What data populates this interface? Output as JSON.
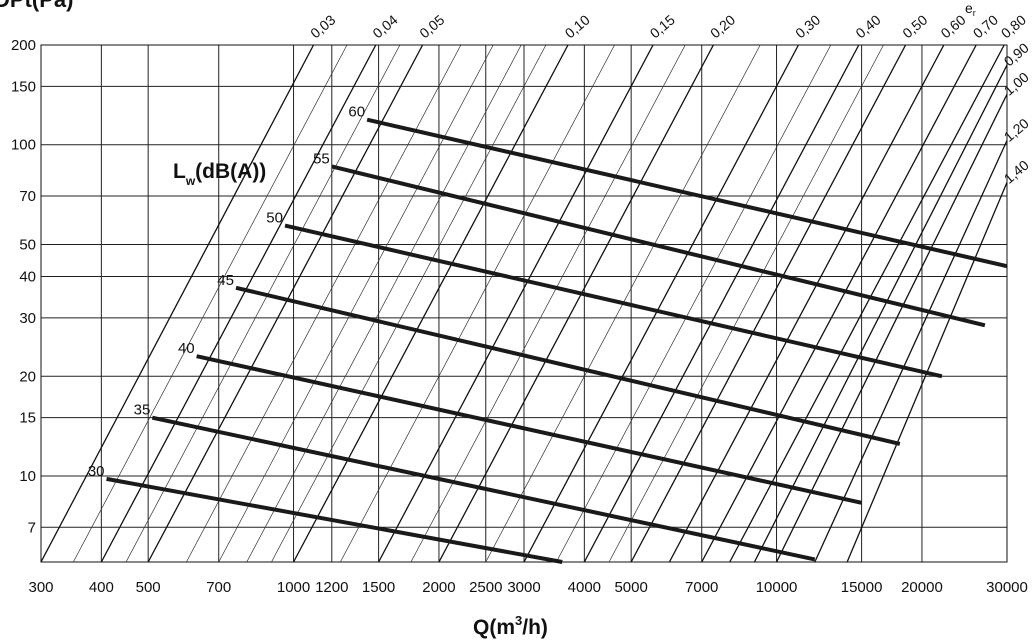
{
  "chart_data": {
    "type": "line",
    "y_title": "DPt(Pa)",
    "x_title": "Q(m",
    "x_title_sup": "3",
    "x_title_end": "/h)",
    "xlim": [
      300,
      30000
    ],
    "ylim": [
      5.5,
      200
    ],
    "x_scale": "log",
    "y_scale": "log",
    "grid": true,
    "x_ticks": [
      300,
      400,
      500,
      700,
      1000,
      1200,
      1500,
      2000,
      2500,
      3000,
      4000,
      5000,
      7000,
      10000,
      15000,
      20000,
      30000
    ],
    "x_tick_labels": [
      "300",
      "400",
      "500",
      "700",
      "1000",
      "1200",
      "1500",
      "2000",
      "2500",
      "3000",
      "4000",
      "5000",
      "7000",
      "10000",
      "15000",
      "20000",
      "30000"
    ],
    "y_ticks": [
      7,
      10,
      15,
      20,
      30,
      40,
      50,
      70,
      100,
      150,
      200
    ],
    "y_tick_labels": [
      "7",
      "10",
      "15",
      "20",
      "30",
      "40",
      "50",
      "70",
      "100",
      "150",
      "200"
    ],
    "diagonal_label_prefix": "e",
    "diagonal_label_prefix_sub": "r",
    "diagonal_lines": [
      {
        "label": "0,03",
        "value": 0.03,
        "points": [
          [
            300,
            5.5
          ],
          [
            1100,
            200
          ]
        ]
      },
      {
        "label": "0,04",
        "value": 0.04,
        "points": [
          [
            400,
            5.5
          ],
          [
            1480,
            200
          ]
        ]
      },
      {
        "label": "0,05",
        "value": 0.05,
        "points": [
          [
            500,
            5.5
          ],
          [
            1850,
            200
          ]
        ]
      },
      {
        "label": "0,10",
        "value": 0.1,
        "points": [
          [
            1000,
            5.5
          ],
          [
            3700,
            200
          ]
        ]
      },
      {
        "label": "0,15",
        "value": 0.15,
        "points": [
          [
            1500,
            5.5
          ],
          [
            5550,
            200
          ]
        ]
      },
      {
        "label": "0,20",
        "value": 0.2,
        "points": [
          [
            2000,
            5.5
          ],
          [
            7400,
            200
          ]
        ]
      },
      {
        "label": "0,30",
        "value": 0.3,
        "points": [
          [
            3000,
            5.5
          ],
          [
            11100,
            200
          ]
        ]
      },
      {
        "label": "0,40",
        "value": 0.4,
        "points": [
          [
            4000,
            5.5
          ],
          [
            14800,
            200
          ]
        ]
      },
      {
        "label": "0,50",
        "value": 0.5,
        "points": [
          [
            5000,
            5.5
          ],
          [
            18500,
            200
          ]
        ]
      },
      {
        "label": "0,60",
        "value": 0.6,
        "points": [
          [
            6000,
            5.5
          ],
          [
            22200,
            200
          ]
        ]
      },
      {
        "label": "0,70",
        "value": 0.7,
        "points": [
          [
            7000,
            5.5
          ],
          [
            25900,
            200
          ]
        ]
      },
      {
        "label": "0,80",
        "value": 0.8,
        "points": [
          [
            8000,
            5.5
          ],
          [
            29600,
            200
          ]
        ]
      },
      {
        "label": "0,90",
        "value": 0.9,
        "points": [
          [
            9000,
            5.5
          ],
          [
            30000,
            174
          ]
        ]
      },
      {
        "label": "1,00",
        "value": 1.0,
        "points": [
          [
            10000,
            5.5
          ],
          [
            30000,
            142
          ]
        ]
      },
      {
        "label": "1,20",
        "value": 1.2,
        "points": [
          [
            12000,
            5.5
          ],
          [
            30000,
            103
          ]
        ]
      },
      {
        "label": "1,40",
        "value": 1.4,
        "points": [
          [
            14000,
            5.5
          ],
          [
            30000,
            77
          ]
        ]
      }
    ],
    "thin_lines": [
      {
        "points": [
          [
            350,
            5.5
          ],
          [
            1290,
            200
          ]
        ]
      },
      {
        "points": [
          [
            450,
            5.5
          ],
          [
            1660,
            200
          ]
        ]
      },
      {
        "points": [
          [
            600,
            5.5
          ],
          [
            2220,
            200
          ]
        ]
      },
      {
        "points": [
          [
            700,
            5.5
          ],
          [
            2590,
            200
          ]
        ]
      },
      {
        "points": [
          [
            800,
            5.5
          ],
          [
            2960,
            200
          ]
        ]
      },
      {
        "points": [
          [
            900,
            5.5
          ],
          [
            3330,
            200
          ]
        ]
      },
      {
        "points": [
          [
            1250,
            5.5
          ],
          [
            4620,
            200
          ]
        ]
      },
      {
        "points": [
          [
            1750,
            5.5
          ],
          [
            6470,
            200
          ]
        ]
      },
      {
        "points": [
          [
            2500,
            5.5
          ],
          [
            9250,
            200
          ]
        ]
      },
      {
        "points": [
          [
            3500,
            5.5
          ],
          [
            12950,
            200
          ]
        ]
      },
      {
        "points": [
          [
            4500,
            5.5
          ],
          [
            16650,
            200
          ]
        ]
      }
    ],
    "series_title_main": "L",
    "series_title_sub": "w",
    "series_title_suffix": "(dB(A))",
    "series": [
      {
        "label": "30",
        "points": [
          [
            410,
            9.8
          ],
          [
            3600,
            5.5
          ]
        ]
      },
      {
        "label": "35",
        "points": [
          [
            510,
            15
          ],
          [
            12000,
            5.6
          ]
        ]
      },
      {
        "label": "40",
        "points": [
          [
            630,
            23
          ],
          [
            15000,
            8.3
          ]
        ]
      },
      {
        "label": "45",
        "points": [
          [
            760,
            37
          ],
          [
            18000,
            12.5
          ]
        ]
      },
      {
        "label": "50",
        "points": [
          [
            960,
            57
          ],
          [
            22000,
            20
          ]
        ]
      },
      {
        "label": "55",
        "points": [
          [
            1200,
            86
          ],
          [
            27000,
            28.5
          ]
        ]
      },
      {
        "label": "60",
        "points": [
          [
            1420,
            119
          ],
          [
            30000,
            43
          ]
        ]
      }
    ]
  }
}
